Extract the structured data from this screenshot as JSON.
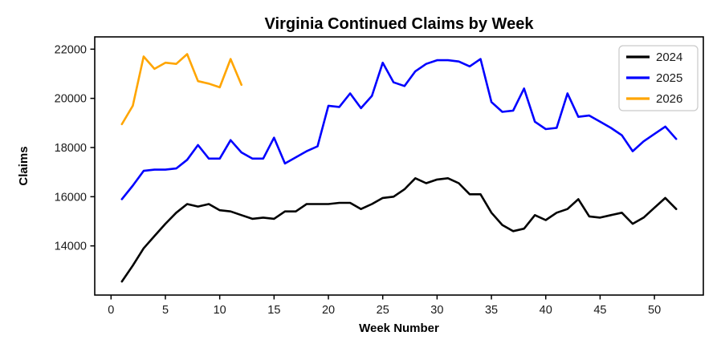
{
  "figure": {
    "background_color": "#ffffff",
    "frame_color": "#000000"
  },
  "chart_data": {
    "type": "line",
    "title": "Virginia Continued Claims by Week",
    "xlabel": "Week Number",
    "ylabel": "Claims",
    "xlim": [
      -1.5,
      54.5
    ],
    "ylim": [
      12000,
      22500
    ],
    "xticks": [
      0,
      5,
      10,
      15,
      20,
      25,
      30,
      35,
      40,
      45,
      50
    ],
    "yticks": [
      14000,
      16000,
      18000,
      20000,
      22000
    ],
    "grid": false,
    "legend_position": "upper right",
    "line_width": 2.6,
    "series": [
      {
        "name": "2024",
        "color": "#000000",
        "x": [
          1,
          2,
          3,
          4,
          5,
          6,
          7,
          8,
          9,
          10,
          11,
          12,
          13,
          14,
          15,
          16,
          17,
          18,
          19,
          20,
          21,
          22,
          23,
          24,
          25,
          26,
          27,
          28,
          29,
          30,
          31,
          32,
          33,
          34,
          35,
          36,
          37,
          38,
          39,
          40,
          41,
          42,
          43,
          44,
          45,
          46,
          47,
          48,
          49,
          50,
          51,
          52
        ],
        "values": [
          12550,
          13200,
          13900,
          14400,
          14900,
          15350,
          15700,
          15600,
          15700,
          15450,
          15400,
          15250,
          15100,
          15150,
          15100,
          15400,
          15400,
          15700,
          15700,
          15700,
          15750,
          15750,
          15500,
          15700,
          15950,
          16000,
          16300,
          16750,
          16550,
          16700,
          16750,
          16550,
          16100,
          16100,
          15350,
          14850,
          14600,
          14700,
          15250,
          15050,
          15350,
          15500,
          15900,
          15200,
          15150,
          15250,
          15350,
          14900,
          15150,
          15550,
          15950,
          15500
        ]
      },
      {
        "name": "2025",
        "color": "#0000ff",
        "x": [
          1,
          2,
          3,
          4,
          5,
          6,
          7,
          8,
          9,
          10,
          11,
          12,
          13,
          14,
          15,
          16,
          17,
          18,
          19,
          20,
          21,
          22,
          23,
          24,
          25,
          26,
          27,
          28,
          29,
          30,
          31,
          32,
          33,
          34,
          35,
          36,
          37,
          38,
          39,
          40,
          41,
          42,
          43,
          44,
          45,
          46,
          47,
          48,
          49,
          50,
          51,
          52
        ],
        "values": [
          15900,
          16450,
          17050,
          17100,
          17100,
          17150,
          17500,
          18100,
          17550,
          17550,
          18300,
          17800,
          17550,
          17550,
          18400,
          17350,
          17600,
          17850,
          18050,
          19700,
          19650,
          20200,
          19600,
          20100,
          21450,
          20650,
          20500,
          21100,
          21400,
          21550,
          21550,
          21500,
          21300,
          21600,
          19850,
          19450,
          19500,
          20400,
          19050,
          18750,
          18800,
          20200,
          19250,
          19300,
          19050,
          18800,
          18500,
          17850,
          18250,
          18550,
          18850,
          18350
        ]
      },
      {
        "name": "2026",
        "color": "#ffa500",
        "x": [
          1,
          2,
          3,
          4,
          5,
          6,
          7,
          8,
          9,
          10,
          11,
          12
        ],
        "values": [
          18950,
          19700,
          21700,
          21200,
          21450,
          21400,
          21800,
          20700,
          20600,
          20450,
          21600,
          20550
        ]
      }
    ]
  }
}
